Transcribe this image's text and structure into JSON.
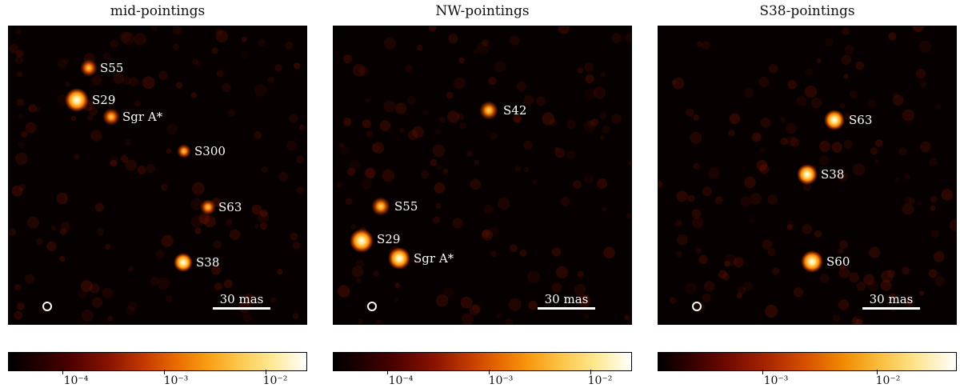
{
  "panels": [
    {
      "title": "mid-pointings",
      "scale_label": "30 mas",
      "colorbar_ticks": [
        "10⁻⁴",
        "10⁻³",
        "10⁻²"
      ],
      "sources": [
        {
          "label": "S55"
        },
        {
          "label": "S29"
        },
        {
          "label": "Sgr A*"
        },
        {
          "label": "S300"
        },
        {
          "label": "S63"
        },
        {
          "label": "S38"
        }
      ]
    },
    {
      "title": "NW-pointings",
      "scale_label": "30 mas",
      "colorbar_ticks": [
        "10⁻⁴",
        "10⁻³",
        "10⁻²"
      ],
      "sources": [
        {
          "label": "S42"
        },
        {
          "label": "S55"
        },
        {
          "label": "S29"
        },
        {
          "label": "Sgr A*"
        }
      ]
    },
    {
      "title": "S38-pointings",
      "scale_label": "30 mas",
      "colorbar_ticks": [
        "10⁻³",
        "10⁻²"
      ],
      "sources": [
        {
          "label": "S63"
        },
        {
          "label": "S38"
        },
        {
          "label": "S60"
        }
      ]
    }
  ],
  "colors": {
    "background": "#060000",
    "accent_glow": "#ff7a00"
  },
  "colormap": "afmhot",
  "colorbar_scale": "log"
}
